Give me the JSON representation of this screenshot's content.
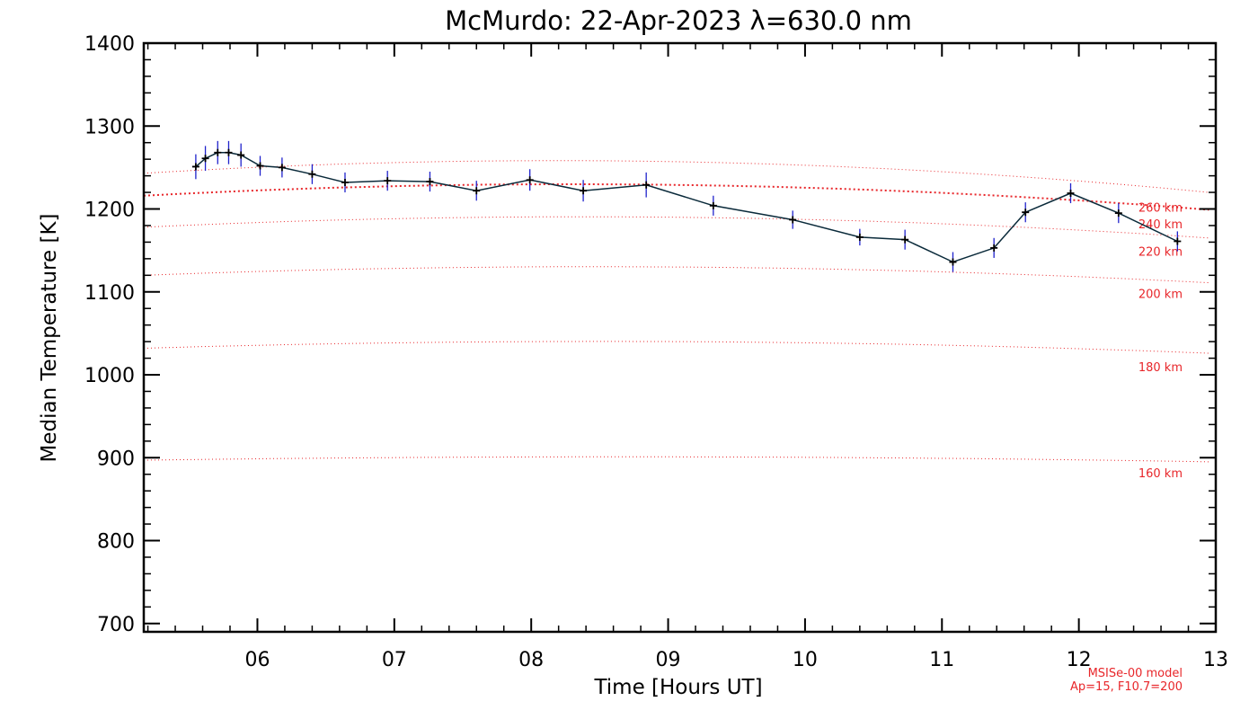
{
  "chart_data": {
    "type": "line",
    "title": "McMurdo: 22-Apr-2023 λ=630.0 nm",
    "xlabel": "Time [Hours UT]",
    "ylabel": "Median Temperature [K]",
    "xlim": [
      5.17,
      13.0
    ],
    "ylim": [
      690,
      1400
    ],
    "x_ticks": [
      6,
      7,
      8,
      9,
      10,
      11,
      12,
      13
    ],
    "x_tick_labels": [
      "06",
      "07",
      "08",
      "09",
      "10",
      "11",
      "12",
      "13"
    ],
    "y_ticks": [
      700,
      800,
      900,
      1000,
      1100,
      1200,
      1300,
      1400
    ],
    "y_tick_labels": [
      "700",
      "800",
      "900",
      "1000",
      "1100",
      "1200",
      "1300",
      "1400"
    ],
    "series": [
      {
        "name": "Median Temperature",
        "color": "#0a2a3a",
        "marker_color": "#000000",
        "errorbar_color": "#1f22cc",
        "x": [
          5.55,
          5.62,
          5.71,
          5.79,
          5.88,
          6.02,
          6.18,
          6.4,
          6.64,
          6.95,
          7.26,
          7.6,
          7.99,
          8.38,
          8.84,
          9.33,
          9.91,
          10.4,
          10.73,
          11.08,
          11.38,
          11.61,
          11.94,
          12.29,
          12.72
        ],
        "y": [
          1251,
          1261,
          1268,
          1268,
          1265,
          1252,
          1250,
          1242,
          1232,
          1234,
          1233,
          1222,
          1235,
          1222,
          1229,
          1204,
          1187,
          1166,
          1163,
          1136,
          1153,
          1196,
          1219,
          1195,
          1161
        ],
        "err": [
          15,
          15,
          14,
          14,
          14,
          12,
          12,
          12,
          12,
          12,
          12,
          12,
          13,
          13,
          15,
          12,
          11,
          10,
          12,
          12,
          12,
          12,
          12,
          12,
          12
        ]
      }
    ],
    "model_curves": {
      "color": "#e8262a",
      "x_start": 5.17,
      "x_end": 12.95,
      "lines": [
        {
          "label": "160 km",
          "y_start": 897,
          "y_peak": 901,
          "y_end": 895,
          "label_y": 882,
          "emphasis": false
        },
        {
          "label": "180 km",
          "y_start": 1032,
          "y_peak": 1040,
          "y_end": 1026,
          "label_y": 1010,
          "emphasis": false
        },
        {
          "label": "200 km",
          "y_start": 1120,
          "y_peak": 1130,
          "y_end": 1111,
          "label_y": 1098,
          "emphasis": false
        },
        {
          "label": "220 km",
          "y_start": 1178,
          "y_peak": 1190,
          "y_end": 1165,
          "label_y": 1149,
          "emphasis": false
        },
        {
          "label": "240 km",
          "y_start": 1216,
          "y_peak": 1229,
          "y_end": 1199,
          "label_y": 1182,
          "emphasis": true
        },
        {
          "label": "260 km",
          "y_start": 1243,
          "y_peak": 1257,
          "y_end": 1220,
          "label_y": 1202,
          "emphasis": false
        }
      ]
    },
    "notes": [
      "MSISe-00 model",
      "Ap=15, F10.7=200"
    ]
  }
}
